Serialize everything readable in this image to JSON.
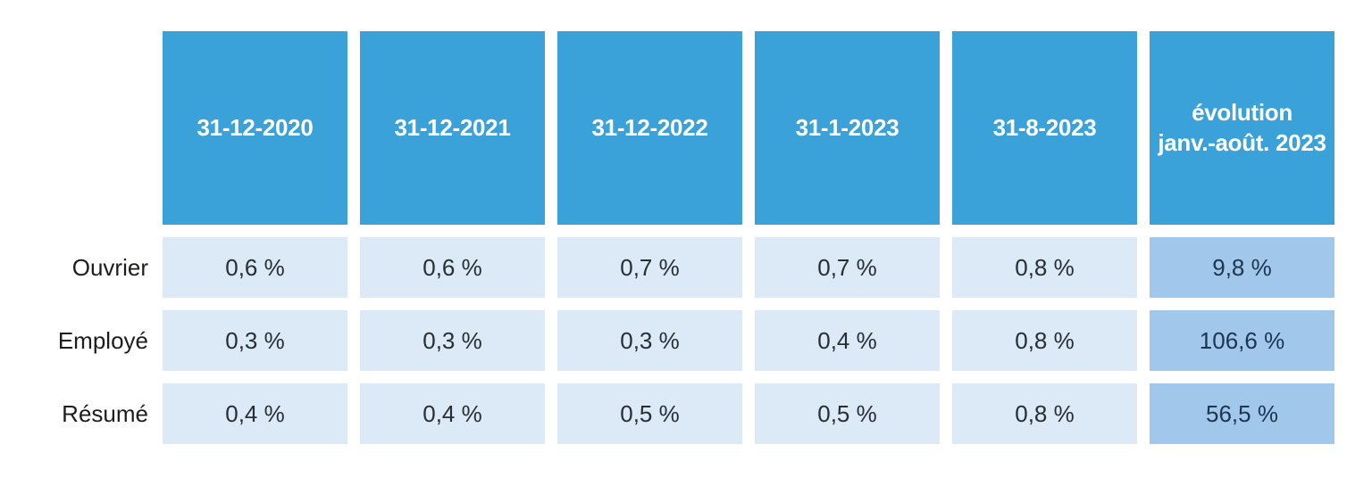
{
  "colors": {
    "header_bg": "#3aa1d9",
    "header_text": "#ffffff",
    "cell_bg": "#dce9f6",
    "evolution_cell_bg": "#a1c8eb",
    "value_text": "#272e34",
    "evolution_value_text": "#1c3550",
    "label_text": "#1d1d1b"
  },
  "chart_data": {
    "type": "table",
    "columns": [
      "31-12-2020",
      "31-12-2021",
      "31-12-2022",
      "31-1-2023",
      "31-8-2023",
      "évolution\njanv.-août. 2023"
    ],
    "rows": [
      {
        "label": "Ouvrier",
        "values": [
          "0,6 %",
          "0,6 %",
          "0,7 %",
          "0,7 %",
          "0,8 %",
          "9,8 %"
        ]
      },
      {
        "label": "Employé",
        "values": [
          "0,3 %",
          "0,3 %",
          "0,3 %",
          "0,4 %",
          "0,8 %",
          "106,6 %"
        ]
      },
      {
        "label": "Résumé",
        "values": [
          "0,4 %",
          "0,4 %",
          "0,5 %",
          "0,5 %",
          "0,8 %",
          "56,5 %"
        ]
      }
    ]
  }
}
